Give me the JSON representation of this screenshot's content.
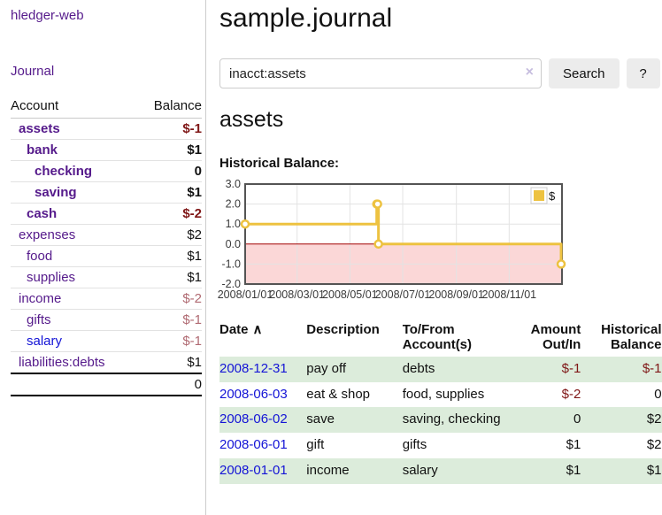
{
  "colors": {
    "link_purple": "#551a8b",
    "link_blue": "#1414d6",
    "negative_strong": "#7f1616",
    "negative_soft": "#b06a72",
    "row_stripe_green": "#dcecdb",
    "button_bg": "#ececec",
    "chart_series": "#edc240",
    "chart_negative_region": "#fbd7d7",
    "chart_zero_line": "#a40000"
  },
  "sidebar": {
    "brand": "hledger-web",
    "nav": {
      "journal_label": "Journal"
    },
    "accounts_table": {
      "headers": {
        "account": "Account",
        "balance": "Balance"
      },
      "rows": [
        {
          "name": "assets",
          "depth": 1,
          "bold": true,
          "balance": "$-1",
          "balance_style": "neg-strong"
        },
        {
          "name": "bank",
          "depth": 2,
          "bold": true,
          "balance": "$1",
          "balance_style": "pos"
        },
        {
          "name": "checking",
          "depth": 3,
          "bold": true,
          "balance": "0",
          "balance_style": "pos"
        },
        {
          "name": "saving",
          "depth": 3,
          "bold": true,
          "balance": "$1",
          "balance_style": "pos"
        },
        {
          "name": "cash",
          "depth": 2,
          "bold": true,
          "balance": "$-2",
          "balance_style": "neg-strong"
        },
        {
          "name": "expenses",
          "depth": 1,
          "bold": false,
          "balance": "$2",
          "balance_style": "pos"
        },
        {
          "name": "food",
          "depth": 2,
          "bold": false,
          "balance": "$1",
          "balance_style": "pos"
        },
        {
          "name": "supplies",
          "depth": 2,
          "bold": false,
          "balance": "$1",
          "balance_style": "pos"
        },
        {
          "name": "income",
          "depth": 1,
          "bold": false,
          "balance": "$-2",
          "balance_style": "neg-soft"
        },
        {
          "name": "gifts",
          "depth": 2,
          "bold": false,
          "balance": "$-1",
          "balance_style": "neg-soft"
        },
        {
          "name": "salary",
          "depth": 2,
          "bold": false,
          "balance": "$-1",
          "balance_style": "neg-soft",
          "link_color": "blue"
        },
        {
          "name": "liabilities:debts",
          "depth": 1,
          "bold": false,
          "balance": "$1",
          "balance_style": "pos"
        }
      ],
      "total": "0"
    }
  },
  "header": {
    "title": "sample.journal"
  },
  "search": {
    "query": "inacct:assets",
    "clear_icon": "×",
    "search_button": "Search",
    "help_button": "?"
  },
  "account_page": {
    "heading": "assets"
  },
  "chart_data": {
    "type": "line",
    "style": "step",
    "title": "Historical Balance:",
    "xlim": [
      "2008-01-01",
      "2009-01-01"
    ],
    "ylim": [
      -2,
      3
    ],
    "grid": true,
    "legend_position": "top-right",
    "series": [
      {
        "name": "$",
        "color": "#edc240",
        "points": [
          [
            "2008-01-01",
            1
          ],
          [
            "2008-06-01",
            2
          ],
          [
            "2008-06-02",
            2
          ],
          [
            "2008-06-03",
            0
          ],
          [
            "2008-12-31",
            -1
          ]
        ]
      }
    ],
    "x_ticks": [
      {
        "date": "2008-01-01",
        "label": "2008/01/01"
      },
      {
        "date": "2008-03-01",
        "label": "2008/03/01"
      },
      {
        "date": "2008-05-01",
        "label": "2008/05/01"
      },
      {
        "date": "2008-07-01",
        "label": "2008/07/01"
      },
      {
        "date": "2008-09-01",
        "label": "2008/09/01"
      },
      {
        "date": "2008-11-01",
        "label": "2008/11/01"
      }
    ],
    "y_ticks": [
      "3.0",
      "2.0",
      "1.0",
      "0.0",
      "-1.0",
      "-2.0"
    ]
  },
  "register_table": {
    "headers": {
      "date": "Date",
      "sort_icon": "∧",
      "description": "Description",
      "account": "To/From Account(s)",
      "amount": "Amount Out/In",
      "balance": "Historical Balance"
    },
    "rows": [
      {
        "date": "2008-12-31",
        "description": "pay off",
        "accounts": "debts",
        "amount": "$-1",
        "amount_neg": true,
        "balance": "$-1",
        "balance_neg": true
      },
      {
        "date": "2008-06-03",
        "description": "eat & shop",
        "accounts": "food, supplies",
        "amount": "$-2",
        "amount_neg": true,
        "balance": "0",
        "balance_neg": false
      },
      {
        "date": "2008-06-02",
        "description": "save",
        "accounts": "saving, checking",
        "amount": "0",
        "amount_neg": false,
        "balance": "$2",
        "balance_neg": false
      },
      {
        "date": "2008-06-01",
        "description": "gift",
        "accounts": "gifts",
        "amount": "$1",
        "amount_neg": false,
        "balance": "$2",
        "balance_neg": false
      },
      {
        "date": "2008-01-01",
        "description": "income",
        "accounts": "salary",
        "amount": "$1",
        "amount_neg": false,
        "balance": "$1",
        "balance_neg": false
      }
    ]
  }
}
